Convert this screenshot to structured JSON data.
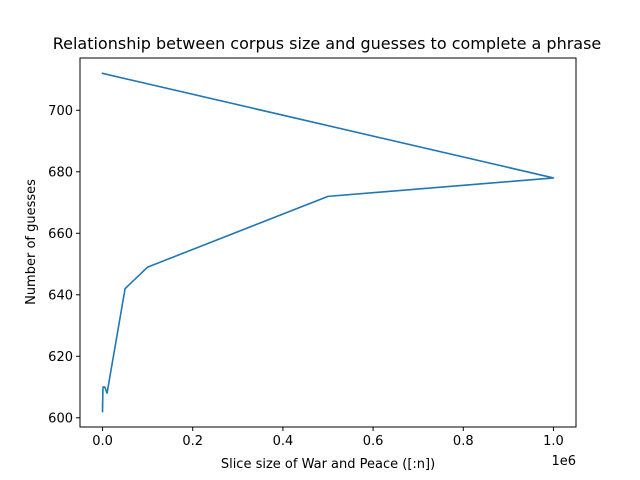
{
  "chart_data": {
    "type": "line",
    "title": "Relationship between corpus size and guesses to complete a phrase",
    "xlabel": "Slice size of War and Peace ([:n])",
    "ylabel": "Number of guesses",
    "x_offset_label": "1e6",
    "xlim": [
      -50000,
      1050000
    ],
    "ylim": [
      597,
      717
    ],
    "x_ticks": [
      0,
      200000,
      400000,
      600000,
      800000,
      1000000
    ],
    "x_tick_labels": [
      "0.0",
      "0.2",
      "0.4",
      "0.6",
      "0.8",
      "1.0"
    ],
    "y_ticks": [
      600,
      620,
      640,
      660,
      680,
      700
    ],
    "y_tick_labels": [
      "600",
      "620",
      "640",
      "660",
      "680",
      "700"
    ],
    "grid": false,
    "series": [
      {
        "color": "#1f77b4",
        "x": [
          10,
          50,
          100,
          500,
          1000,
          5000,
          10000,
          50000,
          100000,
          500000,
          1000000,
          0
        ],
        "y": [
          602,
          605,
          603,
          607,
          610,
          610,
          608,
          642,
          649,
          672,
          678,
          712
        ]
      }
    ]
  }
}
